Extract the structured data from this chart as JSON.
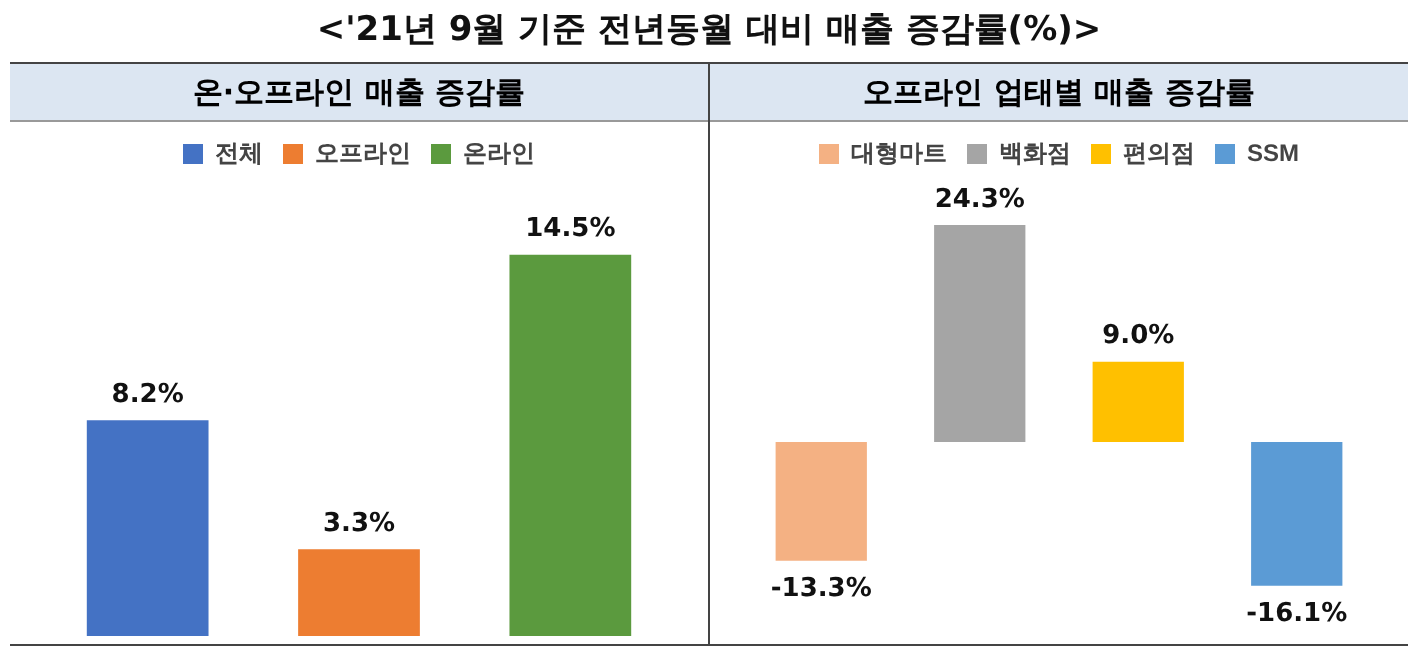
{
  "chart_data": [
    {
      "type": "bar",
      "title": "온·오프라인 매출 증감률",
      "annotations": [
        "<'21년 9월 기준 전년동월 대비 매출 증감률(%)>"
      ],
      "categories": [
        null,
        null,
        null
      ],
      "legend": "top",
      "stacked": true,
      "series": [
        {
          "name": "전체",
          "color": "#4472c4",
          "values": [
            8.2,
            null,
            null
          ],
          "value_labels": [
            "8.2%",
            null,
            null
          ]
        },
        {
          "name": "오프라인",
          "color": "#ed7d31",
          "values": [
            null,
            3.3,
            null
          ],
          "value_labels": [
            null,
            "3.3%",
            null
          ]
        },
        {
          "name": "온라인",
          "color": "#5b9a3e",
          "values": [
            null,
            null,
            14.5
          ],
          "value_labels": [
            null,
            null,
            "14.5%"
          ]
        }
      ]
    },
    {
      "type": "bar",
      "title": "오프라인 업태별 매출 증감률",
      "categories": [
        null,
        null,
        null,
        null
      ],
      "legend": "top",
      "stacked": true,
      "series": [
        {
          "name": "대형마트",
          "color": "#f4b183",
          "values": [
            -13.3,
            null,
            null,
            null
          ],
          "value_labels": [
            "-13.3%",
            null,
            null,
            null
          ]
        },
        {
          "name": "백화점",
          "color": "#a5a5a5",
          "values": [
            null,
            24.3,
            null,
            null
          ],
          "value_labels": [
            null,
            "24.3%",
            null,
            null
          ]
        },
        {
          "name": "편의점",
          "color": "#ffc000",
          "values": [
            null,
            null,
            9.0,
            null
          ],
          "value_labels": [
            null,
            null,
            "9.0%",
            null
          ]
        },
        {
          "name": "SSM",
          "color": "#5b9bd5",
          "values": [
            null,
            null,
            null,
            -16.1
          ],
          "value_labels": [
            null,
            null,
            null,
            "-16.1%"
          ]
        }
      ]
    }
  ]
}
